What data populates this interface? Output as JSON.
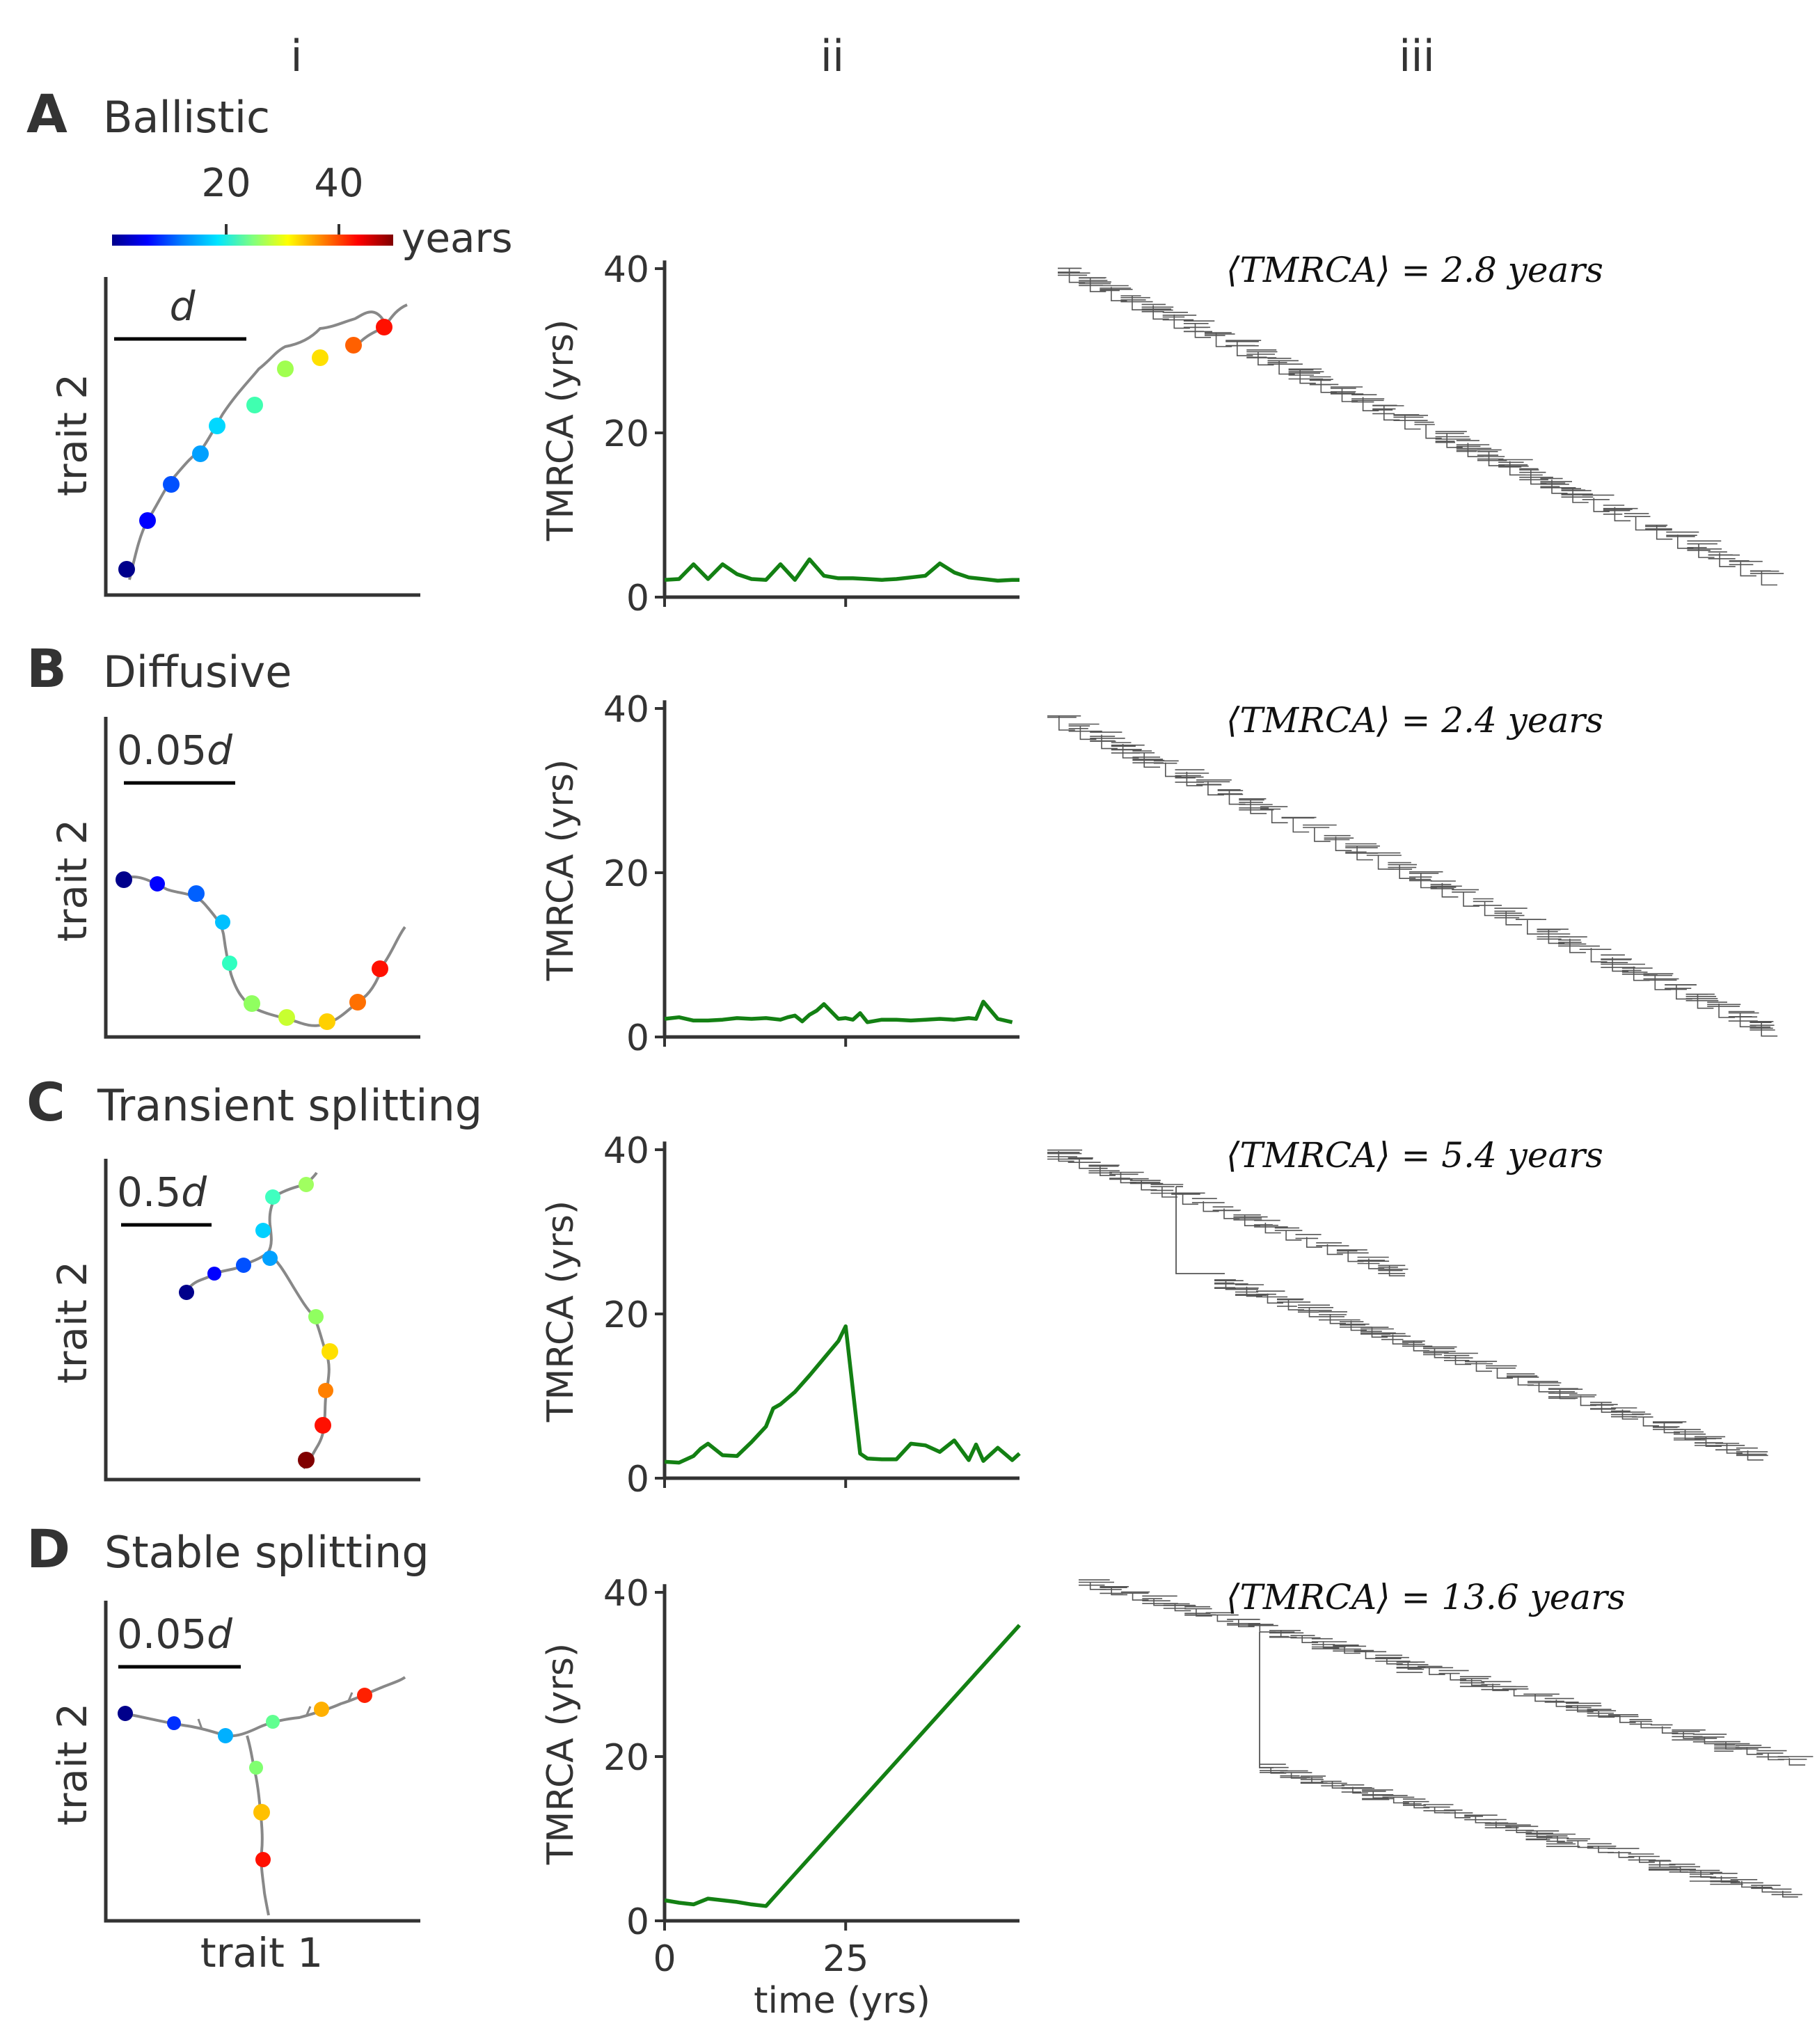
{
  "column_labels": [
    "i",
    "ii",
    "iii"
  ],
  "colorbar": {
    "ticks": [
      "20",
      "40"
    ],
    "label": "years",
    "colors": [
      "#00008b",
      "#0000ff",
      "#0080ff",
      "#00e5ff",
      "#7fff7f",
      "#ffff00",
      "#ff8000",
      "#ff0000",
      "#800000"
    ]
  },
  "line_color": "#138013",
  "panels": [
    {
      "letter": "A",
      "title": "Ballistic",
      "scale_label": {
        "prefix": "",
        "italic": "d"
      },
      "trajectory_ylabel": "trait 2",
      "trajectory_xlabel": "",
      "tmrca_label": "⟨TMRCA⟩ = 2.8 years",
      "tree_kind": "single"
    },
    {
      "letter": "B",
      "title": "Diffusive",
      "scale_label": {
        "prefix": "0.05",
        "italic": "d"
      },
      "trajectory_ylabel": "trait 2",
      "trajectory_xlabel": "",
      "tmrca_label": "⟨TMRCA⟩ = 2.4 years",
      "tree_kind": "single"
    },
    {
      "letter": "C",
      "title": "Transient splitting",
      "scale_label": {
        "prefix": "0.5",
        "italic": "d"
      },
      "trajectory_ylabel": "trait 2",
      "trajectory_xlabel": "",
      "tmrca_label": "⟨TMRCA⟩ = 5.4 years",
      "tree_kind": "transient"
    },
    {
      "letter": "D",
      "title": "Stable splitting",
      "scale_label": {
        "prefix": "0.05",
        "italic": "d"
      },
      "trajectory_ylabel": "trait 2",
      "trajectory_xlabel": "trait 1",
      "tmrca_label": "⟨TMRCA⟩ = 13.6 years",
      "tree_kind": "stable"
    }
  ],
  "chart_data": [
    {
      "type": "line",
      "title": "A Ballistic",
      "xlabel": "",
      "ylabel": "TMRCA (yrs)",
      "xlim": [
        0,
        49
      ],
      "ylim": [
        0,
        41
      ],
      "xticks": [
        0,
        25
      ],
      "yticks": [
        0,
        20,
        40
      ],
      "x": [
        0,
        2,
        4,
        6,
        8,
        10,
        12,
        14,
        16,
        18,
        20,
        22,
        24,
        26,
        28,
        30,
        32,
        34,
        36,
        38,
        40,
        42,
        44,
        46,
        48,
        49
      ],
      "y": [
        2.1,
        2.2,
        4.0,
        2.2,
        4.0,
        2.8,
        2.2,
        2.1,
        4.0,
        2.1,
        4.6,
        2.6,
        2.3,
        2.3,
        2.2,
        2.1,
        2.2,
        2.4,
        2.6,
        4.1,
        3.0,
        2.4,
        2.2,
        2.0,
        2.1,
        2.1
      ]
    },
    {
      "type": "line",
      "title": "B Diffusive",
      "xlabel": "",
      "ylabel": "TMRCA (yrs)",
      "xlim": [
        0,
        49
      ],
      "ylim": [
        0,
        41
      ],
      "xticks": [
        0,
        25
      ],
      "yticks": [
        0,
        20,
        40
      ],
      "x": [
        0,
        2,
        4,
        6,
        8,
        10,
        12,
        14,
        16,
        17,
        18,
        19,
        20,
        21,
        22,
        24,
        25,
        26,
        27,
        28,
        30,
        32,
        34,
        36,
        38,
        40,
        42,
        43,
        44,
        46,
        48
      ],
      "y": [
        2.2,
        2.4,
        2.0,
        2.0,
        2.1,
        2.3,
        2.2,
        2.3,
        2.1,
        2.4,
        2.6,
        1.9,
        2.7,
        3.2,
        4.0,
        2.2,
        2.3,
        2.1,
        2.9,
        1.8,
        2.1,
        2.1,
        2.0,
        2.1,
        2.2,
        2.1,
        2.3,
        2.2,
        4.3,
        2.2,
        1.8
      ]
    },
    {
      "type": "line",
      "title": "C Transient splitting",
      "xlabel": "",
      "ylabel": "TMRCA (yrs)",
      "xlim": [
        0,
        49
      ],
      "ylim": [
        0,
        41
      ],
      "xticks": [
        0,
        25
      ],
      "yticks": [
        0,
        20,
        40
      ],
      "x": [
        0,
        2,
        4,
        5,
        6,
        8,
        10,
        12,
        14,
        15,
        16,
        18,
        20,
        22,
        24,
        25,
        27,
        28,
        30,
        32,
        34,
        36,
        38,
        40,
        42,
        43,
        44,
        46,
        48,
        49
      ],
      "y": [
        2.0,
        1.9,
        2.7,
        3.6,
        4.2,
        2.8,
        2.7,
        4.4,
        6.3,
        8.5,
        9.0,
        10.5,
        12.5,
        14.6,
        16.7,
        18.5,
        3.0,
        2.4,
        2.3,
        2.3,
        4.2,
        4.0,
        3.2,
        4.6,
        2.2,
        4.1,
        2.1,
        3.7,
        2.2,
        3.0
      ]
    },
    {
      "type": "line",
      "title": "D Stable splitting",
      "xlabel": "time (yrs)",
      "ylabel": "TMRCA (yrs)",
      "xlim": [
        0,
        49
      ],
      "ylim": [
        0,
        41
      ],
      "xticks": [
        0,
        25
      ],
      "yticks": [
        0,
        20,
        40
      ],
      "x": [
        0,
        2,
        4,
        6,
        8,
        10,
        12,
        14,
        49
      ],
      "y": [
        2.5,
        2.2,
        2.0,
        2.7,
        2.5,
        2.3,
        2.0,
        1.8,
        36.0
      ]
    }
  ]
}
